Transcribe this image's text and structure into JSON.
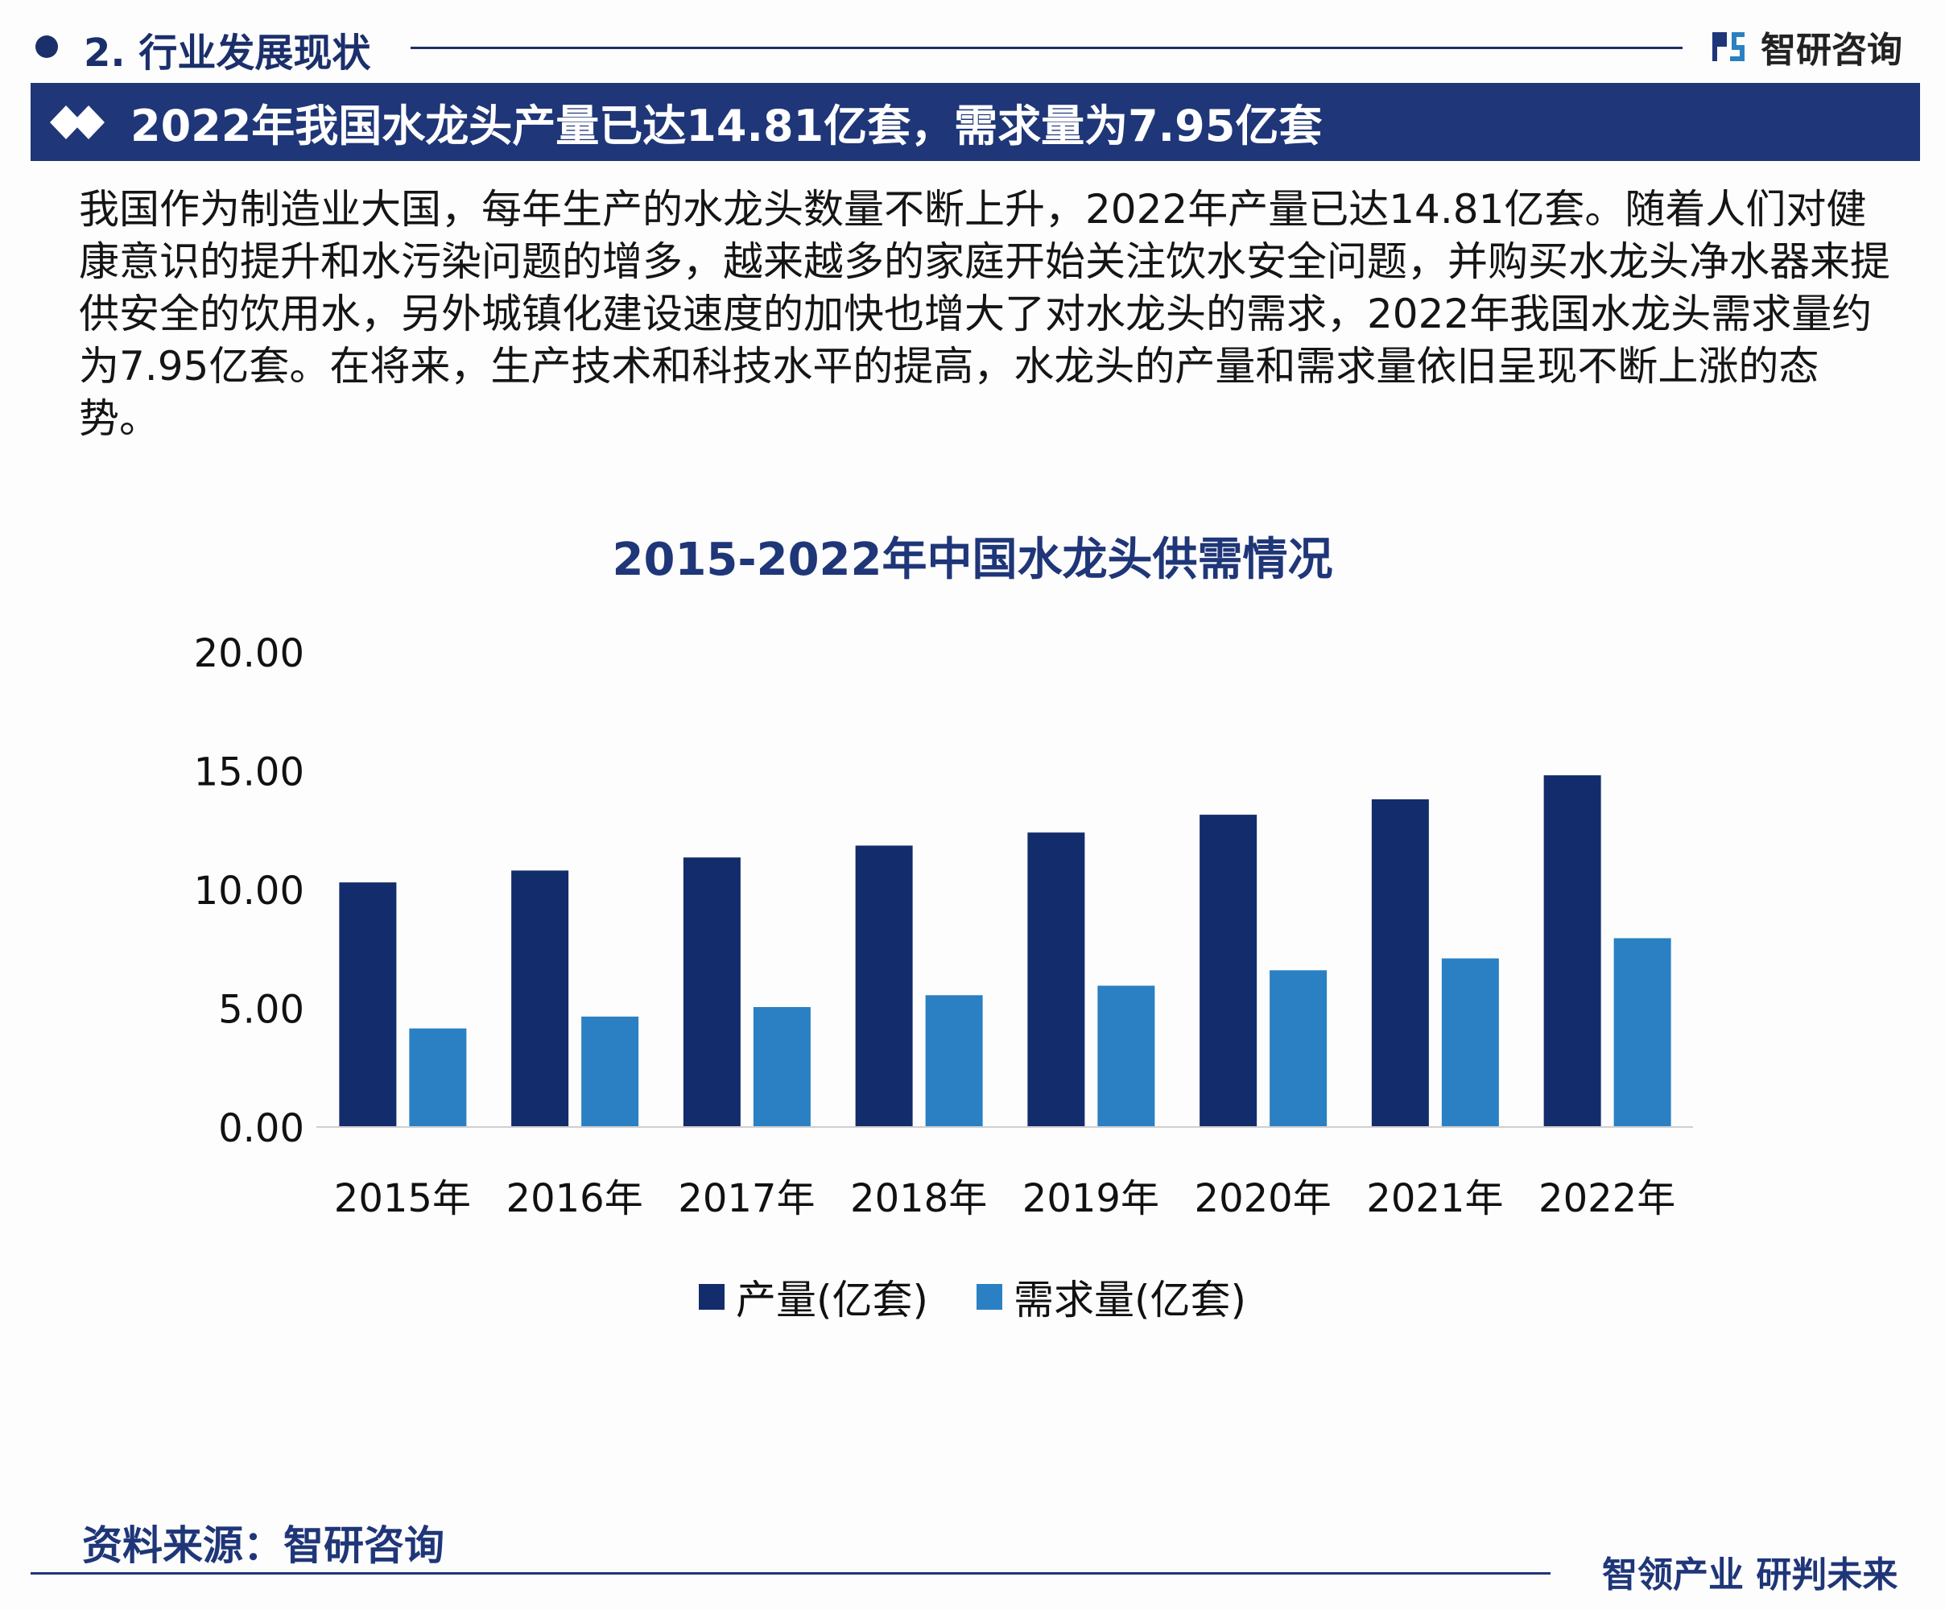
{
  "section": {
    "title": "2. 行业发展现状"
  },
  "logo": {
    "text": "智研咨询"
  },
  "headline": "2022年我国水龙头产量已达14.81亿套，需求量为7.95亿套",
  "paragraph": "我国作为制造业大国，每年生产的水龙头数量不断上升，2022年产量已达14.81亿套。随着人们对健康意识的提升和水污染问题的增多，越来越多的家庭开始关注饮水安全问题，并购买水龙头净水器来提供安全的饮用水，另外城镇化建设速度的加快也增大了对水龙头的需求，2022年我国水龙头需求量约为7.95亿套。在将来，生产技术和科技水平的提高，水龙头的产量和需求量依旧呈现不断上涨的态势。",
  "footer": {
    "source": "资料来源：智研咨询",
    "slogan": "智领产业 研判未来"
  },
  "colors": {
    "navy": "#1f3678",
    "production": "#132c6b",
    "demand": "#2a80c2"
  },
  "chart_data": {
    "type": "bar",
    "title": "2015-2022年中国水龙头供需情况",
    "categories": [
      "2015年",
      "2016年",
      "2017年",
      "2018年",
      "2019年",
      "2020年",
      "2021年",
      "2022年"
    ],
    "series": [
      {
        "name": "产量(亿套)",
        "values": [
          10.3,
          10.8,
          11.35,
          11.85,
          12.4,
          13.15,
          13.8,
          14.81
        ]
      },
      {
        "name": "需求量(亿套)",
        "values": [
          4.15,
          4.65,
          5.05,
          5.55,
          5.95,
          6.6,
          7.1,
          7.95
        ]
      }
    ],
    "yticks": [
      "0.00",
      "5.00",
      "10.00",
      "15.00",
      "20.00"
    ],
    "ylim": [
      0,
      20
    ],
    "grid": false,
    "legend": "bottom"
  }
}
